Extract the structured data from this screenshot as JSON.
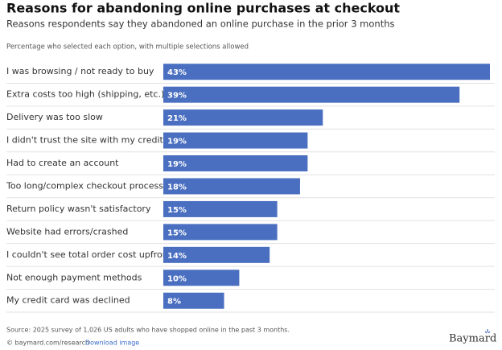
{
  "chart_data": {
    "type": "bar",
    "orientation": "horizontal",
    "title": "Reasons for abandoning online purchases at checkout",
    "subtitle": "Reasons respondents say they abandoned an online purchase in the prior 3 months",
    "note": "Percentage who selected each option, with multiple selections allowed",
    "categories": [
      "I was browsing / not ready to buy",
      "Extra costs too high (shipping, etc.)",
      "Delivery was too slow",
      "I didn't trust the site with my credit card",
      "Had to create an account",
      "Too long/complex checkout process",
      "Return policy wasn't satisfactory",
      "Website had errors/crashed",
      "I couldn't see total order cost upfront",
      "Not enough payment methods",
      "My credit card was declined"
    ],
    "values": [
      43,
      39,
      21,
      19,
      19,
      18,
      15,
      15,
      14,
      10,
      8
    ],
    "value_labels": [
      "43%",
      "39%",
      "21%",
      "19%",
      "19%",
      "18%",
      "15%",
      "15%",
      "14%",
      "10%",
      "8%"
    ],
    "color": "#4a6fc1"
  },
  "footer": {
    "source": "Source: 2025 survey of 1,026 US adults who have shopped online in the past 3 months.",
    "credit": "© baymard.com/research",
    "download": "Download image",
    "brand": "Baymard"
  }
}
